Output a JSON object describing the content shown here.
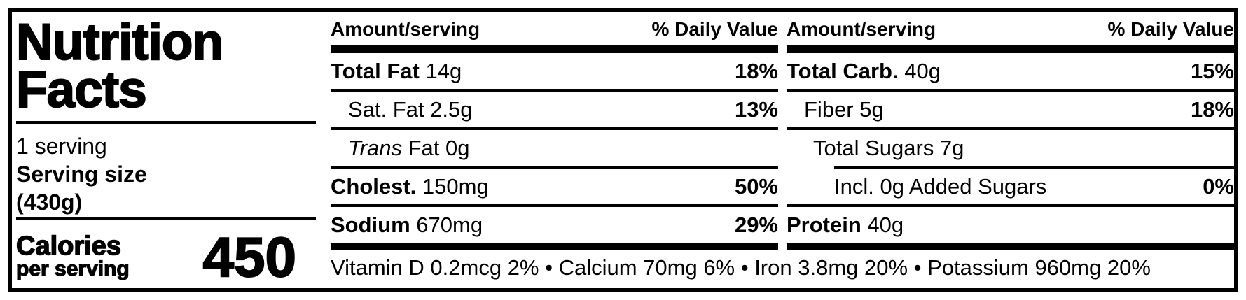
{
  "title": {
    "line1": "Nutrition",
    "line2": "Facts"
  },
  "serving": {
    "servings": "1 serving",
    "size_label": "Serving size",
    "size_value": "(430g)"
  },
  "calories": {
    "label": "Calories",
    "sublabel": "per serving",
    "value": "450"
  },
  "cols": [
    {
      "header": {
        "amount": "Amount/serving",
        "dv": "% Daily Value"
      },
      "rows": [
        {
          "bold": "Total Fat",
          "rest": " 14g",
          "dv": "18%"
        },
        {
          "rest": "Sat. Fat 2.5g",
          "dv": "13%"
        },
        {
          "italic": "Trans",
          "rest": " Fat 0g",
          "dv": ""
        },
        {
          "bold": "Cholest.",
          "rest": " 150mg",
          "dv": "50%"
        },
        {
          "bold": "Sodium",
          "rest": " 670mg",
          "dv": "29%"
        }
      ]
    },
    {
      "header": {
        "amount": "Amount/serving",
        "dv": "% Daily Value"
      },
      "rows": [
        {
          "bold": "Total Carb.",
          "rest": " 40g",
          "dv": "15%"
        },
        {
          "rest": "Fiber 5g",
          "dv": "18%"
        },
        {
          "rest": "Total Sugars 7g",
          "dv": ""
        },
        {
          "rest": "Incl. 0g Added Sugars",
          "dv": "0%"
        },
        {
          "bold": "Protein",
          "rest": " 40g",
          "dv": ""
        }
      ]
    }
  ],
  "footer": {
    "micronutrients": "Vitamin D 0.2mcg 2% • Calcium 70mg 6% • Iron 3.8mg 20% • Potassium 960mg 20%"
  }
}
